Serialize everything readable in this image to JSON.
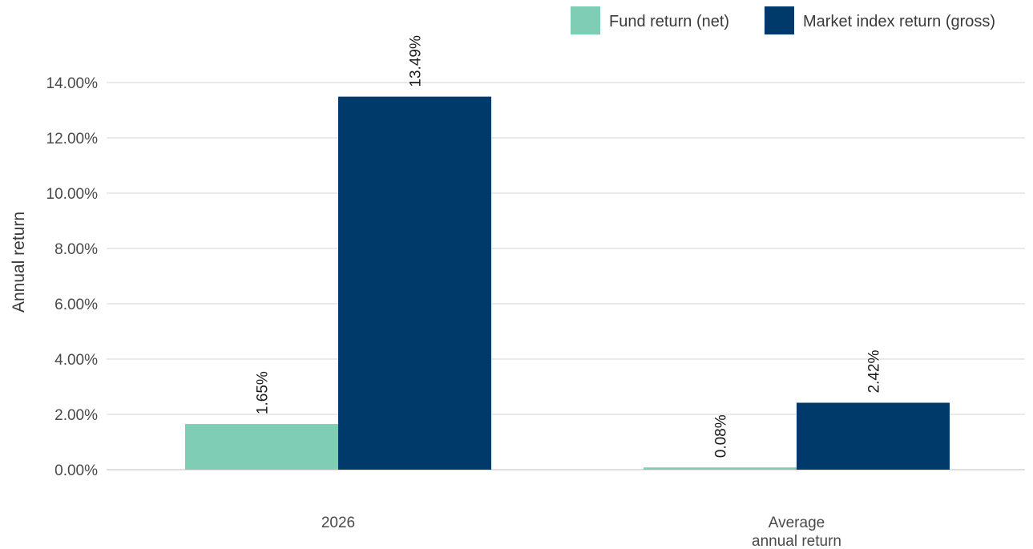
{
  "chart_data": {
    "type": "bar",
    "title": "",
    "ylabel": "Annual return",
    "xlabel": "",
    "categories": [
      [
        "2026"
      ],
      [
        "Average",
        "annual return"
      ]
    ],
    "series": [
      {
        "name": "Fund return (net)",
        "color": "#80cdb6",
        "values": [
          1.65,
          0.08
        ],
        "labels": [
          "1.65%",
          "0.08%"
        ]
      },
      {
        "name": "Market index return (gross)",
        "color": "#003a6b",
        "values": [
          13.49,
          2.42
        ],
        "labels": [
          "13.49%",
          "2.42%"
        ]
      }
    ],
    "ylim": [
      0,
      14
    ],
    "yticks": [
      0,
      2,
      4,
      6,
      8,
      10,
      12,
      14
    ],
    "ytick_labels": [
      "0.00%",
      "2.00%",
      "4.00%",
      "6.00%",
      "8.00%",
      "10.00%",
      "12.00%",
      "14.00%"
    ],
    "grid": true,
    "legend_position": "top-right",
    "data_label_orientation": "vertical"
  }
}
